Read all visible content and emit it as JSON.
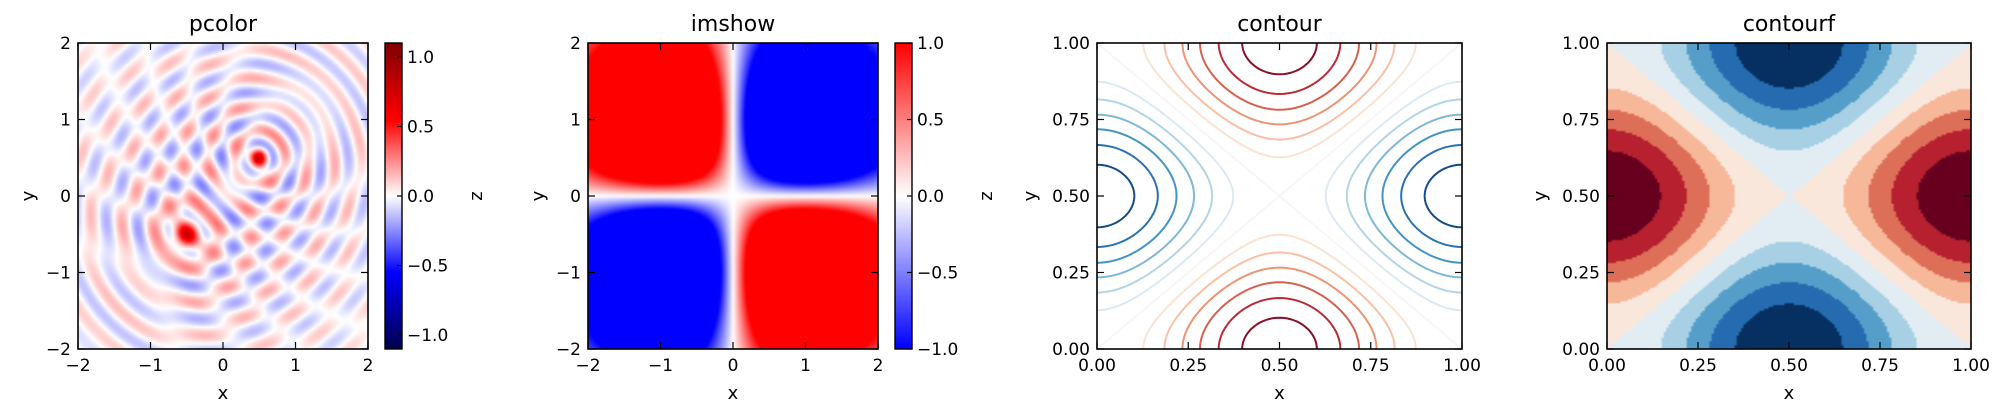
{
  "chart_data": [
    {
      "type": "heatmap",
      "title": "pcolor",
      "xlabel": "x",
      "ylabel": "y",
      "xlim": [
        -2,
        2
      ],
      "ylim": [
        -2,
        2
      ],
      "xticks": [
        -2,
        -1,
        0,
        1,
        2
      ],
      "yticks": [
        -2,
        -1,
        0,
        1,
        2
      ],
      "colormap": "seismic",
      "colorbar": {
        "label": "z",
        "min": -1.1,
        "max": 1.1,
        "ticks": [
          -1.0,
          -0.5,
          0.0,
          0.5,
          1.0
        ]
      },
      "features": [
        {
          "kind": "peak",
          "x": 0.5,
          "y": 0.5,
          "value": 1.0
        },
        {
          "kind": "peak",
          "x": -0.5,
          "y": -0.5,
          "value": 1.0
        }
      ]
    },
    {
      "type": "heatmap",
      "title": "imshow",
      "xlabel": "x",
      "ylabel": "y",
      "xlim": [
        -2,
        2
      ],
      "ylim": [
        -2,
        2
      ],
      "xticks": [
        -2,
        -1,
        0,
        1,
        2
      ],
      "yticks": [
        -2,
        -1,
        0,
        1,
        2
      ],
      "colormap": "bwr",
      "colorbar": {
        "label": "z",
        "min": -1.0,
        "max": 1.0,
        "ticks": [
          -1.0,
          -0.5,
          0.0,
          0.5,
          1.0
        ]
      },
      "features": [
        {
          "kind": "peak",
          "x": -0.6,
          "y": 0.6,
          "value": 1.0
        },
        {
          "kind": "trough",
          "x": 0.6,
          "y": 0.6,
          "value": -1.0
        },
        {
          "kind": "trough",
          "x": -0.6,
          "y": -0.6,
          "value": -1.0
        },
        {
          "kind": "peak",
          "x": 0.6,
          "y": -0.6,
          "value": 1.0
        }
      ]
    },
    {
      "type": "contour",
      "title": "contour",
      "xlabel": "x",
      "ylabel": "y",
      "xlim": [
        0,
        1
      ],
      "ylim": [
        0,
        1
      ],
      "xticks": [
        "0.00",
        "0.25",
        "0.50",
        "0.75",
        "1.00"
      ],
      "yticks": [
        "0.00",
        "0.25",
        "0.50",
        "0.75",
        "1.00"
      ],
      "colormap": "RdBu",
      "grid": false
    },
    {
      "type": "contourf",
      "title": "contourf",
      "xlabel": "x",
      "ylabel": "y",
      "xlim": [
        0,
        1
      ],
      "ylim": [
        0,
        1
      ],
      "xticks": [
        "0.00",
        "0.25",
        "0.50",
        "0.75",
        "1.00"
      ],
      "yticks": [
        "0.00",
        "0.25",
        "0.50",
        "0.75",
        "1.00"
      ],
      "colormap": "RdBu",
      "grid": false
    }
  ]
}
